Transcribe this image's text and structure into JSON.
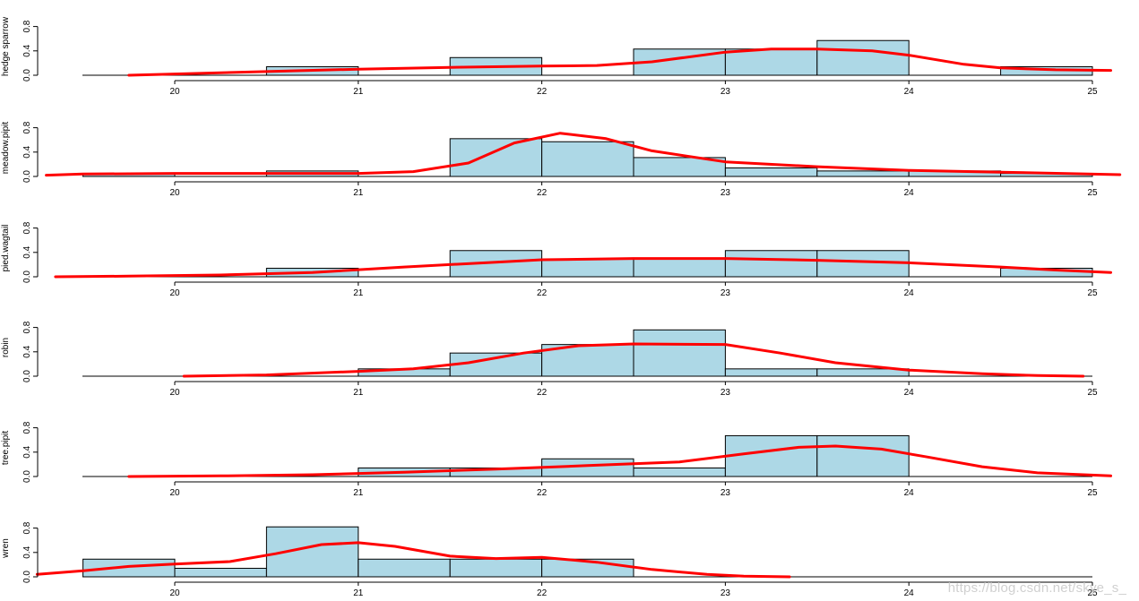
{
  "chart_data": [
    {
      "type": "histogram",
      "ylabel": "hedge sparrow",
      "xlim": [
        19.5,
        25
      ],
      "ylim": [
        0,
        1
      ],
      "yticks": [
        "0.0",
        "0.4",
        "0.8"
      ],
      "xticks": [
        "20",
        "21",
        "22",
        "23",
        "24",
        "25"
      ],
      "bins": [
        [
          19.5,
          20
        ],
        [
          20,
          20.5
        ],
        [
          20.5,
          21
        ],
        [
          21,
          21.5
        ],
        [
          21.5,
          22
        ],
        [
          22,
          22.5
        ],
        [
          22.5,
          23
        ],
        [
          23,
          23.5
        ],
        [
          23.5,
          24
        ],
        [
          24,
          24.5
        ],
        [
          24.5,
          25
        ]
      ],
      "values": [
        0,
        0,
        0.14,
        0,
        0.29,
        0,
        0.43,
        0.43,
        0.57,
        0,
        0.14
      ],
      "density": {
        "x": [
          19.75,
          20,
          20.5,
          21,
          21.5,
          22,
          22.3,
          22.6,
          23,
          23.25,
          23.5,
          23.8,
          24,
          24.3,
          24.5,
          24.8,
          25.1
        ],
        "y": [
          0.0,
          0.02,
          0.06,
          0.1,
          0.13,
          0.15,
          0.16,
          0.22,
          0.38,
          0.43,
          0.43,
          0.4,
          0.33,
          0.18,
          0.12,
          0.09,
          0.08
        ]
      }
    },
    {
      "type": "histogram",
      "ylabel": "meadow.pipit",
      "xlim": [
        19.5,
        25
      ],
      "ylim": [
        0,
        1
      ],
      "yticks": [
        "0.0",
        "0.4",
        "0.8"
      ],
      "xticks": [
        "20",
        "21",
        "22",
        "23",
        "24",
        "25"
      ],
      "bins": [
        [
          19.5,
          20
        ],
        [
          20,
          20.5
        ],
        [
          20.5,
          21
        ],
        [
          21,
          21.5
        ],
        [
          21.5,
          22
        ],
        [
          22,
          22.5
        ],
        [
          22.5,
          23
        ],
        [
          23,
          23.5
        ],
        [
          23.5,
          24
        ],
        [
          24,
          24.5
        ],
        [
          24.5,
          25
        ]
      ],
      "values": [
        0.05,
        0,
        0.09,
        0,
        0.62,
        0.57,
        0.31,
        0.14,
        0.09,
        0.09,
        0.05
      ],
      "density": {
        "x": [
          19.3,
          19.5,
          20,
          20.5,
          21,
          21.3,
          21.6,
          21.85,
          22.1,
          22.35,
          22.6,
          23,
          23.5,
          24,
          24.5,
          25.15
        ],
        "y": [
          0.02,
          0.04,
          0.05,
          0.05,
          0.05,
          0.08,
          0.22,
          0.55,
          0.71,
          0.62,
          0.42,
          0.24,
          0.16,
          0.1,
          0.07,
          0.03
        ]
      }
    },
    {
      "type": "histogram",
      "ylabel": "pied.wagtail",
      "xlim": [
        19.5,
        25
      ],
      "ylim": [
        0,
        1
      ],
      "yticks": [
        "0.0",
        "0.4",
        "0.8"
      ],
      "xticks": [
        "20",
        "21",
        "22",
        "23",
        "24",
        "25"
      ],
      "bins": [
        [
          19.5,
          20
        ],
        [
          20,
          20.5
        ],
        [
          20.5,
          21
        ],
        [
          21,
          21.5
        ],
        [
          21.5,
          22
        ],
        [
          22,
          22.5
        ],
        [
          22.5,
          23
        ],
        [
          23,
          23.5
        ],
        [
          23.5,
          24
        ],
        [
          24,
          24.5
        ],
        [
          24.5,
          25
        ]
      ],
      "values": [
        0,
        0,
        0.14,
        0,
        0.43,
        0.29,
        0.29,
        0.43,
        0.43,
        0,
        0.14
      ],
      "density": {
        "x": [
          19.35,
          19.75,
          20.25,
          20.75,
          21.25,
          21.75,
          22,
          22.5,
          23,
          23.5,
          24,
          24.5,
          24.8,
          25.1
        ],
        "y": [
          0.0,
          0.01,
          0.03,
          0.07,
          0.16,
          0.24,
          0.28,
          0.3,
          0.3,
          0.27,
          0.23,
          0.16,
          0.11,
          0.07
        ]
      }
    },
    {
      "type": "histogram",
      "ylabel": "robin",
      "xlim": [
        19.5,
        25
      ],
      "ylim": [
        0,
        1
      ],
      "yticks": [
        "0.0",
        "0.4",
        "0.8"
      ],
      "xticks": [
        "20",
        "21",
        "22",
        "23",
        "24",
        "25"
      ],
      "bins": [
        [
          19.5,
          20
        ],
        [
          20,
          20.5
        ],
        [
          20.5,
          21
        ],
        [
          21,
          21.5
        ],
        [
          21.5,
          22
        ],
        [
          22,
          22.5
        ],
        [
          22.5,
          23
        ],
        [
          23,
          23.5
        ],
        [
          23.5,
          24
        ],
        [
          24,
          24.5
        ],
        [
          24.5,
          25
        ]
      ],
      "values": [
        0,
        0,
        0,
        0.12,
        0.38,
        0.52,
        0.76,
        0.12,
        0.12,
        0,
        0
      ],
      "density": {
        "x": [
          20.05,
          20.5,
          21,
          21.3,
          21.6,
          21.9,
          22.2,
          22.5,
          23,
          23.3,
          23.6,
          24,
          24.4,
          24.7,
          24.95
        ],
        "y": [
          0.0,
          0.02,
          0.08,
          0.12,
          0.22,
          0.38,
          0.5,
          0.53,
          0.52,
          0.38,
          0.22,
          0.1,
          0.04,
          0.01,
          0.0
        ]
      }
    },
    {
      "type": "histogram",
      "ylabel": "tree.pipit",
      "xlim": [
        19.5,
        25
      ],
      "ylim": [
        0,
        1
      ],
      "yticks": [
        "0.0",
        "0.4",
        "0.8"
      ],
      "xticks": [
        "20",
        "21",
        "22",
        "23",
        "24",
        "25"
      ],
      "bins": [
        [
          19.5,
          20
        ],
        [
          20,
          20.5
        ],
        [
          20.5,
          21
        ],
        [
          21,
          21.5
        ],
        [
          21.5,
          22
        ],
        [
          22,
          22.5
        ],
        [
          22.5,
          23
        ],
        [
          23,
          23.5
        ],
        [
          23.5,
          24
        ],
        [
          24,
          24.5
        ],
        [
          24.5,
          25
        ]
      ],
      "values": [
        0,
        0,
        0,
        0.14,
        0.14,
        0.29,
        0.14,
        0.67,
        0.67,
        0,
        0
      ],
      "density": {
        "x": [
          19.75,
          20.25,
          20.75,
          21.25,
          21.75,
          22.25,
          22.75,
          23.1,
          23.4,
          23.6,
          23.85,
          24.1,
          24.4,
          24.7,
          25.1
        ],
        "y": [
          0.0,
          0.01,
          0.03,
          0.07,
          0.12,
          0.18,
          0.24,
          0.37,
          0.48,
          0.5,
          0.45,
          0.32,
          0.16,
          0.06,
          0.01
        ]
      }
    },
    {
      "type": "histogram",
      "ylabel": "wren",
      "xlim": [
        19.5,
        25
      ],
      "ylim": [
        0,
        1
      ],
      "yticks": [
        "0.0",
        "0.4",
        "0.8"
      ],
      "xticks": [
        "20",
        "21",
        "22",
        "23",
        "24",
        "25"
      ],
      "bins": [
        [
          19.5,
          20
        ],
        [
          20,
          20.5
        ],
        [
          20.5,
          21
        ],
        [
          21,
          21.5
        ],
        [
          21.5,
          22
        ],
        [
          22,
          22.5
        ],
        [
          22.5,
          23
        ],
        [
          23,
          23.5
        ],
        [
          23.5,
          24
        ],
        [
          24,
          24.5
        ],
        [
          24.5,
          25
        ]
      ],
      "values": [
        0.29,
        0.14,
        0.82,
        0.29,
        0.29,
        0.29,
        0,
        0,
        0,
        0,
        0
      ],
      "density": {
        "x": [
          19.25,
          19.5,
          19.75,
          20,
          20.3,
          20.55,
          20.8,
          21,
          21.2,
          21.5,
          21.75,
          22,
          22.3,
          22.6,
          22.9,
          23.1,
          23.35
        ],
        "y": [
          0.04,
          0.1,
          0.17,
          0.21,
          0.25,
          0.38,
          0.53,
          0.56,
          0.5,
          0.34,
          0.3,
          0.32,
          0.24,
          0.12,
          0.04,
          0.01,
          0.0
        ]
      }
    }
  ],
  "colors": {
    "bar_fill": "#add8e6",
    "bar_stroke": "#000000",
    "density_line": "#ff0000",
    "axis": "#000000"
  },
  "watermark": "https://blog.csdn.net/skye_s_"
}
